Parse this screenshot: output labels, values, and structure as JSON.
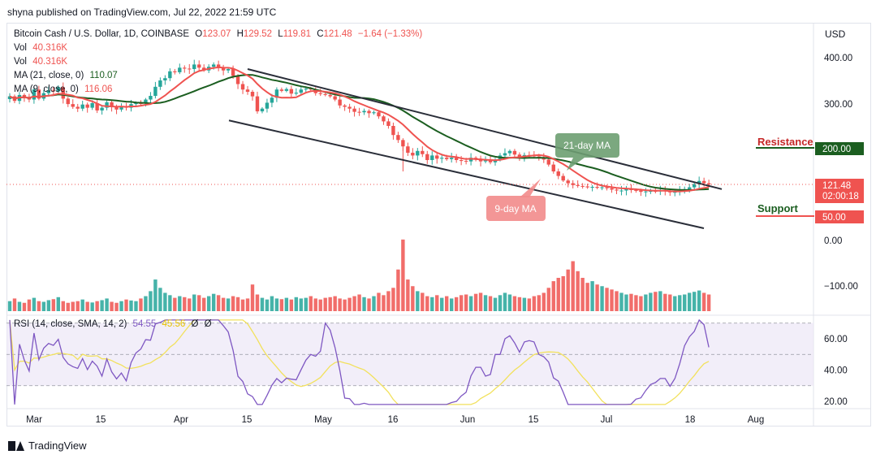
{
  "header": {
    "published_line": "shyna published on TradingView.com, Jul 22, 2022 21:59 UTC"
  },
  "legend": {
    "symbol": "Bitcoin Cash / U.S. Dollar, 1D, COINBASE",
    "open_label": "O",
    "open": "123.07",
    "high_label": "H",
    "high": "129.52",
    "low_label": "L",
    "low": "119.81",
    "close_label": "C",
    "close": "121.48",
    "change": "−1.64 (−1.33%)",
    "vol1_label": "Vol",
    "vol1": "40.316K",
    "vol2_label": "Vol",
    "vol2": "40.316K",
    "ma21_label": "MA (21, close, 0)",
    "ma21": "110.07",
    "ma9_label": "MA (9, close, 0)",
    "ma9": "116.06",
    "rsi_label": "RSI (14, close, SMA, 14, 2)",
    "rsi": "54.55",
    "rsi_sma": "45.56",
    "rsi_extra1": "Ø",
    "rsi_extra2": "Ø"
  },
  "currency_label": "USD",
  "footer": {
    "brand": "TradingView"
  },
  "colors": {
    "bull": "#26a69a",
    "bear": "#ef5350",
    "ma9": "#ef5350",
    "ma21": "#1b5e20",
    "rsi_line": "#7e57c2",
    "rsi_sma": "#f2e15c",
    "rsi_band": "#ede7f6",
    "resistance_badge": "#1b5e20",
    "support_badge": "#ef5350",
    "last_price_badge": "#ef5350"
  },
  "chart_data": {
    "type": "candlestick",
    "x_ticks": [
      "Mar",
      "15",
      "Apr",
      "15",
      "May",
      "16",
      "Jun",
      "15",
      "Jul",
      "18",
      "Aug"
    ],
    "price_axis_ticks": [
      "400.00",
      "300.00",
      "200.00",
      "121.48",
      "50.00",
      "0.00",
      "−100.00"
    ],
    "last_price": 121.48,
    "countdown": "02:00:18",
    "annotations": {
      "resistance": {
        "label": "Resistance",
        "value": "200.00"
      },
      "support": {
        "label": "Support",
        "value": "50.00"
      },
      "ma21_callout": "21-day MA",
      "ma9_callout": "9-day MA"
    },
    "channel": {
      "upper": [
        {
          "date": "Apr 10",
          "price": 375
        },
        {
          "date": "Jul 23",
          "price": 120
        }
      ],
      "lower": [
        {
          "date": "Apr 09",
          "price": 262
        },
        {
          "date": "Jul 21",
          "price": 25
        }
      ]
    },
    "ohlc_series": {
      "start_date": "2022-02-24",
      "closes": [
        315,
        305,
        318,
        313,
        308,
        330,
        310,
        322,
        328,
        326,
        335,
        310,
        298,
        292,
        288,
        297,
        290,
        300,
        284,
        290,
        302,
        292,
        286,
        293,
        290,
        298,
        300,
        299,
        308,
        316,
        336,
        350,
        355,
        370,
        368,
        378,
        376,
        375,
        385,
        378,
        372,
        380,
        385,
        379,
        372,
        375,
        360,
        342,
        330,
        325,
        315,
        282,
        288,
        301,
        312,
        330,
        327,
        331,
        321,
        323,
        330,
        332,
        330,
        322,
        320,
        318,
        315,
        308,
        295,
        292,
        288,
        281,
        280,
        283,
        278,
        280,
        271,
        260,
        250,
        230,
        219,
        205,
        191,
        185,
        195,
        188,
        175,
        185,
        178,
        180,
        177,
        180,
        175,
        173,
        172,
        180,
        178,
        172,
        175,
        170,
        175,
        185,
        190,
        195,
        187,
        182,
        186,
        185,
        183,
        180,
        176,
        165,
        150,
        140,
        130,
        124,
        120,
        118,
        117,
        115,
        116,
        114,
        115,
        113,
        110,
        108,
        108,
        112,
        109,
        108,
        105,
        106,
        107,
        106,
        108,
        106,
        104,
        105,
        107,
        111,
        115,
        122,
        129,
        124,
        121
      ],
      "vol": [
        30,
        38,
        28,
        25,
        35,
        40,
        30,
        28,
        33,
        36,
        42,
        30,
        25,
        28,
        30,
        35,
        28,
        26,
        30,
        33,
        38,
        28,
        25,
        30,
        35,
        32,
        30,
        38,
        45,
        60,
        95,
        70,
        55,
        48,
        40,
        45,
        42,
        38,
        50,
        48,
        40,
        45,
        52,
        48,
        40,
        38,
        45,
        42,
        35,
        38,
        80,
        50,
        40,
        35,
        45,
        38,
        36,
        40,
        35,
        42,
        38,
        40,
        45,
        38,
        35,
        40,
        42,
        45,
        38,
        35,
        40,
        45,
        50,
        42,
        38,
        45,
        55,
        48,
        60,
        70,
        125,
        215,
        95,
        75,
        60,
        55,
        45,
        42,
        48,
        40,
        45,
        38,
        42,
        48,
        50,
        45,
        52,
        55,
        48,
        45,
        40,
        48,
        55,
        50,
        45,
        42,
        40,
        38,
        45,
        48,
        55,
        70,
        90,
        100,
        105,
        125,
        150,
        120,
        100,
        85,
        90,
        80,
        75,
        70,
        65,
        60,
        55,
        50,
        52,
        48,
        45,
        50,
        55,
        58,
        60,
        52,
        50,
        45,
        48,
        50,
        55,
        58,
        62,
        55,
        50
      ]
    },
    "ma9_label_value": 116.06,
    "ma21_label_value": 110.07,
    "price_ylim": [
      -150,
      440
    ],
    "rsi": {
      "ylim": [
        15,
        72
      ],
      "ticks": [
        "60.00",
        "40.00",
        "20.00"
      ],
      "band": [
        30,
        70
      ],
      "mid": 50,
      "last": 54.55,
      "sma_last": 45.56
    }
  }
}
